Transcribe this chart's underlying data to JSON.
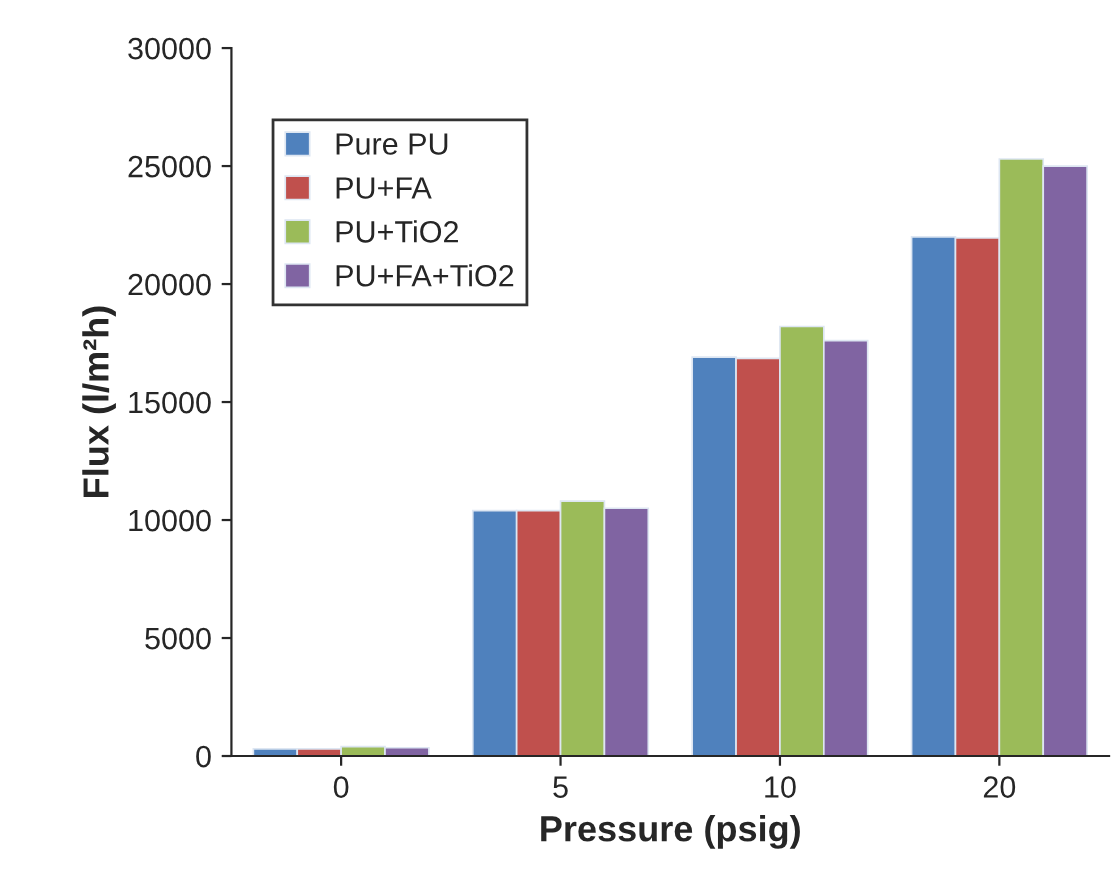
{
  "chart_data": {
    "type": "bar",
    "xlabel": "Pressure (psig)",
    "ylabel": "Flux (l/m²h)",
    "categories": [
      "0",
      "5",
      "10",
      "20"
    ],
    "series": [
      {
        "name": "Pure PU",
        "color": "#4f81bd",
        "values": [
          300,
          10400,
          16900,
          22000
        ]
      },
      {
        "name": "PU+FA",
        "color": "#c0504d",
        "values": [
          300,
          10400,
          16850,
          21950
        ]
      },
      {
        "name": "PU+TiO2",
        "color": "#9bbb59",
        "values": [
          400,
          10800,
          18200,
          25300
        ]
      },
      {
        "name": "PU+FA+TiO2",
        "color": "#8064a2",
        "values": [
          350,
          10500,
          17600,
          25000
        ]
      }
    ],
    "ylim": [
      0,
      30000
    ],
    "yticks": [
      0,
      5000,
      10000,
      15000,
      20000,
      25000,
      30000
    ],
    "grid": false,
    "legend": "top left"
  }
}
